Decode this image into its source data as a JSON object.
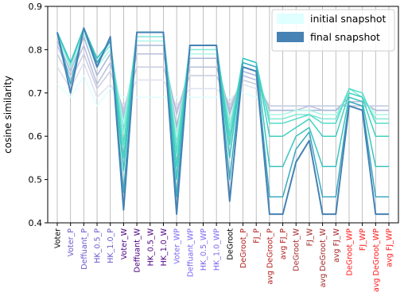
{
  "chart_data": {
    "type": "line",
    "ylabel": "cosine similarity",
    "ylim": [
      0.4,
      0.9
    ],
    "yticks": [
      "0.4",
      "0.5",
      "0.6",
      "0.7",
      "0.8",
      "0.9"
    ],
    "grid": "vertical",
    "legend_position": "top-right",
    "categories": [
      "Voter",
      "Voter_P",
      "Deffuant_P",
      "HK_0.5_P",
      "HK_1.0_P",
      "Voter_W",
      "Deffuant_W",
      "HK_0.5_W",
      "HK_1.0_W",
      "Voter_WP",
      "Deffuant_WP",
      "HK_0.5_WP",
      "HK_1.0_WP",
      "DeGroot",
      "DeGroot_P",
      "FJ_P",
      "avg DeGroot_P",
      "avg FJ_P",
      "DeGroot_W",
      "FJ_W",
      "avg DeGroot_W",
      "avg FJ_W",
      "DeGroot_WP",
      "FJ_WP",
      "avg DeGroot_WP",
      "avg FJ_WP"
    ],
    "category_colors": [
      "#000000",
      "#6a5acd",
      "#6a5acd",
      "#6a5acd",
      "#6a5acd",
      "#4b0082",
      "#4b0082",
      "#4b0082",
      "#4b0082",
      "#7b68ee",
      "#7b68ee",
      "#7b68ee",
      "#7b68ee",
      "#000000",
      "#b22222",
      "#b22222",
      "#b22222",
      "#b22222",
      "#a52a2a",
      "#a52a2a",
      "#a52a2a",
      "#a52a2a",
      "#ff1a1a",
      "#ff1a1a",
      "#ff1a1a",
      "#ff1a1a"
    ],
    "legend": [
      {
        "label": "initial snapshot",
        "color": "#e0ffff"
      },
      {
        "label": "final snapshot",
        "color": "#4682b4"
      }
    ],
    "series": [
      {
        "color": "#e0ffff",
        "values": [
          0.72,
          0.69,
          0.74,
          0.67,
          0.71,
          0.69,
          0.69,
          0.69,
          0.69,
          0.69,
          0.69,
          0.69,
          0.69,
          0.69,
          0.7,
          0.69,
          0.67,
          0.67,
          0.67,
          0.67,
          0.67,
          0.67,
          0.67,
          0.67,
          0.67,
          0.67
        ]
      },
      {
        "color": "#dde0f0",
        "values": [
          0.76,
          0.71,
          0.77,
          0.69,
          0.72,
          0.67,
          0.73,
          0.73,
          0.73,
          0.67,
          0.71,
          0.71,
          0.71,
          0.68,
          0.72,
          0.71,
          0.67,
          0.67,
          0.67,
          0.67,
          0.67,
          0.67,
          0.67,
          0.67,
          0.67,
          0.67
        ]
      },
      {
        "color": "#c8cce0",
        "values": [
          0.79,
          0.73,
          0.79,
          0.71,
          0.75,
          0.66,
          0.76,
          0.76,
          0.76,
          0.66,
          0.74,
          0.74,
          0.74,
          0.67,
          0.73,
          0.72,
          0.67,
          0.67,
          0.67,
          0.67,
          0.67,
          0.67,
          0.67,
          0.67,
          0.67,
          0.67
        ]
      },
      {
        "color": "#b8c0dc",
        "values": [
          0.81,
          0.74,
          0.81,
          0.72,
          0.77,
          0.65,
          0.79,
          0.79,
          0.79,
          0.65,
          0.76,
          0.76,
          0.76,
          0.66,
          0.74,
          0.73,
          0.66,
          0.66,
          0.66,
          0.67,
          0.66,
          0.66,
          0.68,
          0.68,
          0.66,
          0.66
        ]
      },
      {
        "color": "#a8b8d8",
        "values": [
          0.82,
          0.75,
          0.83,
          0.74,
          0.79,
          0.64,
          0.81,
          0.81,
          0.81,
          0.62,
          0.78,
          0.78,
          0.78,
          0.65,
          0.75,
          0.74,
          0.66,
          0.66,
          0.66,
          0.66,
          0.66,
          0.66,
          0.69,
          0.68,
          0.66,
          0.66
        ]
      },
      {
        "color": "#aef5e8",
        "values": [
          0.83,
          0.76,
          0.84,
          0.76,
          0.8,
          0.63,
          0.82,
          0.82,
          0.82,
          0.6,
          0.79,
          0.79,
          0.79,
          0.63,
          0.76,
          0.75,
          0.65,
          0.65,
          0.66,
          0.66,
          0.65,
          0.65,
          0.7,
          0.69,
          0.65,
          0.65
        ]
      },
      {
        "color": "#7fe8d8",
        "values": [
          0.84,
          0.76,
          0.85,
          0.77,
          0.81,
          0.61,
          0.83,
          0.83,
          0.83,
          0.58,
          0.8,
          0.8,
          0.8,
          0.62,
          0.77,
          0.76,
          0.64,
          0.64,
          0.65,
          0.65,
          0.64,
          0.64,
          0.71,
          0.69,
          0.64,
          0.64
        ]
      },
      {
        "color": "#55dcc8",
        "values": [
          0.84,
          0.77,
          0.85,
          0.78,
          0.82,
          0.58,
          0.84,
          0.84,
          0.84,
          0.56,
          0.81,
          0.81,
          0.81,
          0.6,
          0.78,
          0.77,
          0.63,
          0.63,
          0.64,
          0.65,
          0.63,
          0.63,
          0.71,
          0.7,
          0.63,
          0.63
        ]
      },
      {
        "color": "#40d0c0",
        "values": [
          0.84,
          0.77,
          0.85,
          0.78,
          0.82,
          0.55,
          0.84,
          0.84,
          0.84,
          0.53,
          0.81,
          0.81,
          0.81,
          0.58,
          0.78,
          0.77,
          0.6,
          0.6,
          0.62,
          0.64,
          0.6,
          0.6,
          0.7,
          0.69,
          0.6,
          0.6
        ]
      },
      {
        "color": "#3cc4c0",
        "values": [
          0.84,
          0.77,
          0.85,
          0.78,
          0.82,
          0.52,
          0.84,
          0.84,
          0.84,
          0.5,
          0.81,
          0.81,
          0.81,
          0.55,
          0.78,
          0.77,
          0.53,
          0.53,
          0.6,
          0.62,
          0.53,
          0.53,
          0.69,
          0.68,
          0.53,
          0.53
        ]
      },
      {
        "color": "#3aa8c0",
        "values": [
          0.84,
          0.72,
          0.85,
          0.77,
          0.82,
          0.47,
          0.84,
          0.84,
          0.84,
          0.46,
          0.81,
          0.81,
          0.81,
          0.5,
          0.77,
          0.76,
          0.46,
          0.46,
          0.57,
          0.61,
          0.46,
          0.46,
          0.68,
          0.67,
          0.46,
          0.46
        ]
      },
      {
        "color": "#4682b4",
        "values": [
          0.84,
          0.7,
          0.85,
          0.76,
          0.83,
          0.43,
          0.84,
          0.84,
          0.84,
          0.42,
          0.81,
          0.81,
          0.81,
          0.45,
          0.76,
          0.75,
          0.42,
          0.42,
          0.54,
          0.59,
          0.42,
          0.42,
          0.67,
          0.66,
          0.42,
          0.42
        ]
      }
    ]
  }
}
